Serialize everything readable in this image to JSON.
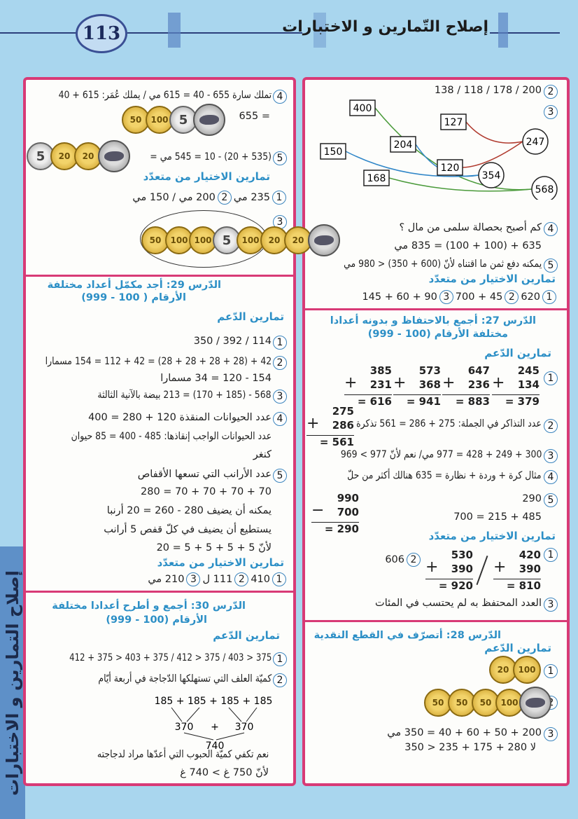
{
  "header": {
    "page_number": "113",
    "title": "إصلاح التّمارين و الاختبارات"
  },
  "sidebar": {
    "label": "إصلاح التمارين و الاختبارات"
  },
  "colors": {
    "background": "#a9d6ee",
    "panel_border": "#d83a76",
    "heading": "#2c8fc6",
    "header_line": "#2c3f7c"
  },
  "headings": {
    "support": "تمارين الدّعم",
    "multiple_choice": "تمارين الاختيار من متعدّد"
  },
  "right": {
    "top": {
      "q2": "200 / 178 / 118 / 138",
      "q3_boxes": [
        "400",
        "127",
        "204",
        "150",
        "120",
        "168"
      ],
      "q3_circles": [
        "247",
        "354",
        "568"
      ],
      "q4_line1": "كم أصبح بحصالة سلمى من مال ؟",
      "q4_line2": "635 + (100 + 100) = 835 مي",
      "q5": "يمكنه دفع ثمن ما اقتناه لأنّ (600 + 350) < 980 مي",
      "mc": {
        "a1": "620",
        "a2": "45 + 700",
        "a3": "90 + 60 + 145"
      }
    },
    "lesson27": {
      "title1": "الدّرس 27: أجمع بالاحتفاظ و بدونه أعدادا",
      "title2": "مختلفة الأرقام (100 - 999)",
      "q1": [
        {
          "a": "245",
          "b": "134",
          "r": "= 379"
        },
        {
          "a": "647",
          "b": "236",
          "r": "= 883"
        },
        {
          "a": "573",
          "b": "368",
          "r": "= 941"
        },
        {
          "a": "385",
          "b": "231",
          "r": "= 616"
        }
      ],
      "q2": "عدد التذاكر في الجملة: 275 + 286 = 561 تذكرة",
      "q2_col": {
        "a": "275",
        "b": "286",
        "r": "= 561"
      },
      "q3": "300 + 249 + 428 = 977 مي/ نعم لأنّ 977 > 969",
      "q4": "مثال كرة + وردة + نظارة = 635 هنالك أكثر من حلّ",
      "q5_line1": "290",
      "q5_line2": "485 + 215 = 700",
      "q5_col": {
        "a": "990",
        "b": "700",
        "r": "= 290"
      },
      "mc_q1": [
        {
          "a": "420",
          "b": "390",
          "r": "= 810"
        },
        {
          "a": "530",
          "b": "390",
          "r": "= 920"
        }
      ],
      "mc_q2": "606",
      "mc_q3": "العدد المحتفظ به لم يحتسب في المئات"
    },
    "lesson28": {
      "title": "الدّرس 28: أتصرّف في القطع النقدية",
      "q1_coins": [
        "20",
        "100"
      ],
      "q2_coins": [
        "50",
        "50",
        "50",
        "100",
        "fish"
      ],
      "q3_line1": "200 + 50 + 60 + 40 = 350 مي",
      "q3_line2": "لا 280 + 175 + 235 < 350"
    }
  },
  "left": {
    "top": {
      "q4": "تملك سارة 655 - 40 = 615 مي / يملك عُمَر: 615 + 40",
      "q4_cont": "= 655",
      "q4_coins": [
        "50",
        "100",
        "5",
        "fish"
      ],
      "q5": "(535 + 20) - 10 = 545 مي =",
      "q5_coins": [
        "5",
        "20",
        "20",
        "fish"
      ],
      "mc_q1": "235 مي",
      "mc_q2": "200 مي / 150 مي",
      "mc_q3_coins": [
        "50",
        "100",
        "100",
        "5",
        "100",
        "20",
        "20",
        "fish"
      ]
    },
    "lesson29": {
      "title1": "الدّرس 29: أجد مكمّل أعداد مختلفة",
      "title2": "الأرقام ( 100 - 999)",
      "q1": "114 / 392 / 350",
      "q2_line1": "42 + (28 + 28 + 28 + 28) = 42 + 112 = 154 مسمارا",
      "q2_line2": "154 - 120 = 34 مسمارا",
      "q3": "568 - (185 + 170) = 213 بيضة بالآنية الثالثة",
      "q4_line1": "عدد الحيوانات المنقذة 120 + 280 = 400",
      "q4_line2": "عدد الحيوانات الواجب إنقاذها: 485 - 400 = 85 حيوان",
      "q4_line3": "كنغر",
      "q5_line1": "عدد الأرانب التي تسعها الأقفاص",
      "q5_line2": "70 + 70 + 70 + 70 = 280",
      "q5_line3": "يمكنه أن يضيف 280 - 260 = 20 أرنبا",
      "q5_line4": "يستطيع أن يضيف في كلّ قفص 5 أرانب",
      "q5_line5": "لأنّ 5 + 5 + 5 + 5 = 20",
      "mc": {
        "a1": "410",
        "a2": "111 ل",
        "a3": "210 مي"
      }
    },
    "lesson30": {
      "title1": "الدّرس 30: أجمع و أطرح أعدادا مختلفة",
      "title2": "الأرقام (100 - 999)",
      "q1": "375 < 403 / 375 < 412 / 375 + 403 < 375 + 412",
      "q2": "كميّة العلف التي تستهلكها الدّجاجة في أربعة أيّام",
      "tree": {
        "top": "185 + 185 + 185 + 185",
        "mid_left": "370",
        "mid_op": "+",
        "mid_right": "370",
        "bottom": "740"
      },
      "q2_answer": "نعم تكفي كميّة الحبوب التي أعدّها مراد لدجاجته",
      "q2_reason": "لأنّ 750 غ > 740 غ"
    }
  }
}
